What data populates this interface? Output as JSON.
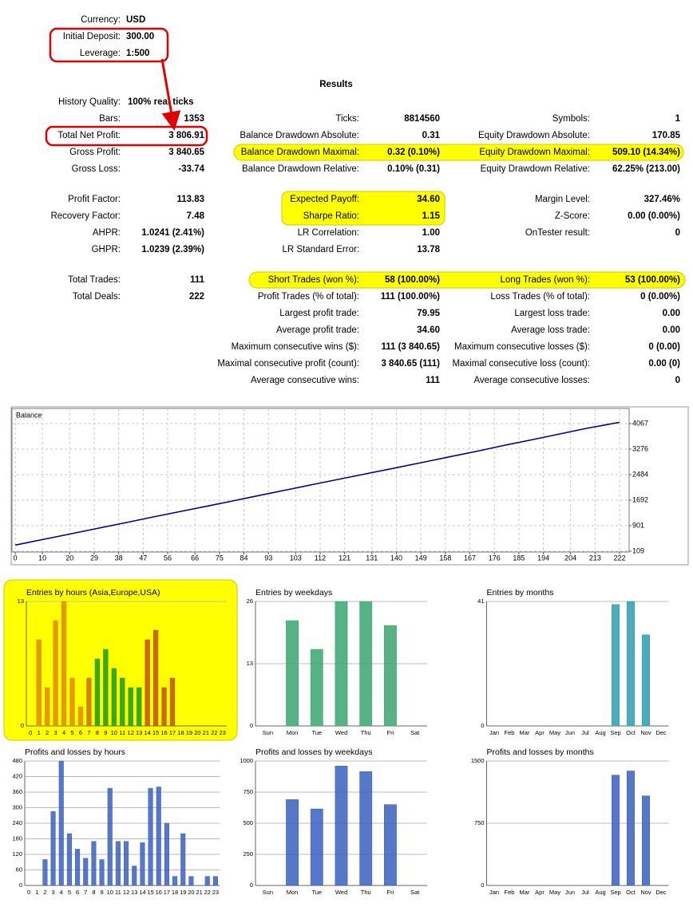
{
  "report": {
    "header": [
      {
        "label": "Currency:",
        "value": "USD"
      },
      {
        "label": "Initial Deposit:",
        "value": "300.00"
      },
      {
        "label": "Leverage:",
        "value": "1:500"
      }
    ],
    "title": "Results",
    "history": {
      "label": "History Quality:",
      "value": "100% real ticks"
    },
    "blocks": [
      {
        "columns": [
          [
            {
              "label": "Bars:",
              "value": "1353"
            },
            {
              "label": "Total Net Profit:",
              "value": "3 806.91"
            },
            {
              "label": "Gross Profit:",
              "value": "3 840.65"
            },
            {
              "label": "Gross Loss:",
              "value": "-33.74"
            }
          ],
          [
            {
              "label": "Ticks:",
              "value": "8814560"
            },
            {
              "label": "Balance Drawdown Absolute:",
              "value": "0.31"
            },
            {
              "label": "Balance Drawdown Maximal:",
              "value": "0.32 (0.10%)"
            },
            {
              "label": "Balance Drawdown Relative:",
              "value": "0.10% (0.31)"
            }
          ],
          [
            {
              "label": "Symbols:",
              "value": "1"
            },
            {
              "label": "Equity Drawdown Absolute:",
              "value": "170.85"
            },
            {
              "label": "Equity Drawdown Maximal:",
              "value": "509.10 (14.34%)"
            },
            {
              "label": "Equity Drawdown Relative:",
              "value": "62.25% (213.00)"
            }
          ]
        ]
      },
      {
        "columns": [
          [
            {
              "label": "Profit Factor:",
              "value": "113.83"
            },
            {
              "label": "Recovery Factor:",
              "value": "7.48"
            },
            {
              "label": "AHPR:",
              "value": "1.0241 (2.41%)"
            },
            {
              "label": "GHPR:",
              "value": "1.0239 (2.39%)"
            }
          ],
          [
            {
              "label": "Expected Payoff:",
              "value": "34.60"
            },
            {
              "label": "Sharpe Ratio:",
              "value": "1.15"
            },
            {
              "label": "LR Correlation:",
              "value": "1.00"
            },
            {
              "label": "LR Standard Error:",
              "value": "13.78"
            }
          ],
          [
            {
              "label": "Margin Level:",
              "value": "327.46%"
            },
            {
              "label": "Z-Score:",
              "value": "0.00 (0.00%)"
            },
            {
              "label": "OnTester result:",
              "value": "0"
            }
          ]
        ]
      },
      {
        "columns": [
          [
            {
              "label": "Total Trades:",
              "value": "111"
            },
            {
              "label": "Total Deals:",
              "value": "222"
            }
          ],
          [
            {
              "label": "Short Trades (won %):",
              "value": "58 (100.00%)"
            },
            {
              "label": "Profit Trades (% of total):",
              "value": "111 (100.00%)"
            },
            {
              "label": "Largest profit trade:",
              "value": "79.95"
            },
            {
              "label": "Average profit trade:",
              "value": "34.60"
            },
            {
              "label": "Maximum consecutive wins ($):",
              "value": "111 (3 840.65)"
            },
            {
              "label": "Maximal consecutive profit (count):",
              "value": "3 840.65 (111)"
            },
            {
              "label": "Average consecutive wins:",
              "value": "111"
            }
          ],
          [
            {
              "label": "Long Trades (won %):",
              "value": "53 (100.00%)"
            },
            {
              "label": "Loss Trades (% of total):",
              "value": "0 (0.00%)"
            },
            {
              "label": "Largest loss trade:",
              "value": "0.00"
            },
            {
              "label": "Average loss trade:",
              "value": "0.00"
            },
            {
              "label": "Maximum consecutive losses ($):",
              "value": "0 (0.00)"
            },
            {
              "label": "Maximal consecutive loss (count):",
              "value": "0.00 (0)"
            },
            {
              "label": "Average consecutive losses:",
              "value": "0"
            }
          ]
        ]
      }
    ]
  },
  "chart_data": [
    {
      "type": "line",
      "title": "Balance",
      "color": "#00008b",
      "grid": true,
      "x": [
        0,
        10,
        20,
        30,
        40,
        50,
        60,
        70,
        80,
        90,
        100,
        110,
        120,
        130,
        140,
        150,
        160,
        170,
        180,
        190,
        200,
        210,
        222
      ],
      "values": [
        300,
        470,
        640,
        815,
        985,
        1160,
        1330,
        1500,
        1670,
        1845,
        2015,
        2190,
        2360,
        2530,
        2700,
        2870,
        3045,
        3215,
        3400,
        3570,
        3745,
        3920,
        4107
      ],
      "xlim": [
        -1.2,
        225.5
      ],
      "xticks": [
        0,
        10,
        20,
        29,
        38,
        47,
        56,
        66,
        75,
        84,
        93,
        103,
        112,
        121,
        131,
        140,
        149,
        158,
        167,
        176,
        185,
        194,
        204,
        213,
        222
      ],
      "ylim": [
        84,
        4537
      ],
      "yticks": [
        109,
        901,
        1692,
        2484,
        3276,
        4067
      ]
    },
    {
      "type": "bar",
      "title": "Entries by hours (Asia,Europe,USA)",
      "categories": [
        "0",
        "1",
        "2",
        "3",
        "4",
        "5",
        "6",
        "7",
        "8",
        "9",
        "10",
        "11",
        "12",
        "13",
        "14",
        "15",
        "16",
        "17",
        "18",
        "19",
        "20",
        "21",
        "22",
        "23"
      ],
      "values": [
        0,
        9,
        4,
        11,
        13,
        5,
        2,
        5,
        7,
        8,
        6,
        5,
        4,
        4,
        9,
        10,
        4,
        5,
        0,
        0,
        0,
        0,
        0,
        0
      ],
      "colors": [
        "#e08a00",
        "#e08a00",
        "#e08a00",
        "#e08a00",
        "#e08a00",
        "#e08a00",
        "#e08a00",
        "#c87000",
        "#1a9a1a",
        "#1a9a1a",
        "#1a9a1a",
        "#1a9a1a",
        "#1a9a1a",
        "#1a9a1a",
        "#c0501a",
        "#c0501a",
        "#c0501a",
        "#c0501a",
        "#c0501a",
        "#c0501a",
        "#c0501a",
        "#c0501a",
        "#c0501a",
        "#c0501a"
      ],
      "ylim": [
        0,
        13
      ],
      "yticks": [
        0,
        13
      ]
    },
    {
      "type": "bar",
      "title": "Entries by weekdays",
      "color": "#3aa66e",
      "categories": [
        "Sun",
        "Mon",
        "Tue",
        "Wed",
        "Thu",
        "Fri",
        "Sat"
      ],
      "values": [
        0,
        22,
        16,
        26,
        26,
        21,
        0
      ],
      "ylim": [
        0,
        26
      ],
      "yticks": [
        0,
        13,
        26
      ]
    },
    {
      "type": "bar",
      "title": "Entries by months",
      "color": "#2a9db0",
      "categories": [
        "Jan",
        "Feb",
        "Mar",
        "Apr",
        "May",
        "Jun",
        "Jul",
        "Aug",
        "Sep",
        "Oct",
        "Nov",
        "Dec"
      ],
      "values": [
        0,
        0,
        0,
        0,
        0,
        0,
        0,
        0,
        40,
        41,
        30,
        0
      ],
      "ylim": [
        0,
        41
      ],
      "yticks": [
        0,
        41
      ]
    },
    {
      "type": "bar",
      "title": "Profits and losses by hours",
      "color": "#3a5fbf",
      "categories": [
        "0",
        "1",
        "2",
        "3",
        "4",
        "5",
        "6",
        "7",
        "8",
        "9",
        "10",
        "11",
        "12",
        "13",
        "14",
        "15",
        "16",
        "17",
        "18",
        "19",
        "20",
        "21",
        "22",
        "23"
      ],
      "values": [
        0,
        0,
        100,
        285,
        480,
        200,
        140,
        105,
        170,
        100,
        375,
        170,
        170,
        75,
        165,
        375,
        380,
        240,
        35,
        200,
        35,
        0,
        35,
        35
      ],
      "ylim": [
        0,
        480
      ],
      "yticks": [
        0,
        60,
        120,
        180,
        240,
        300,
        360,
        420,
        480
      ]
    },
    {
      "type": "bar",
      "title": "Profits and losses by weekdays",
      "color": "#3a5fbf",
      "categories": [
        "Sun",
        "Mon",
        "Tue",
        "Wed",
        "Thu",
        "Fri",
        "Sat"
      ],
      "values": [
        0,
        690,
        615,
        960,
        915,
        650,
        0
      ],
      "ylim": [
        0,
        1000
      ],
      "yticks": [
        0,
        250,
        500,
        750,
        1000
      ]
    },
    {
      "type": "bar",
      "title": "Profits and losses by months",
      "color": "#3a5fbf",
      "categories": [
        "Jan",
        "Feb",
        "Mar",
        "Apr",
        "May",
        "Jun",
        "Jul",
        "Aug",
        "Sep",
        "Oct",
        "Nov",
        "Dec"
      ],
      "values": [
        0,
        0,
        0,
        0,
        0,
        0,
        0,
        0,
        1330,
        1380,
        1080,
        0
      ],
      "ylim": [
        0,
        1500
      ],
      "yticks": [
        0,
        750,
        1500
      ]
    }
  ]
}
